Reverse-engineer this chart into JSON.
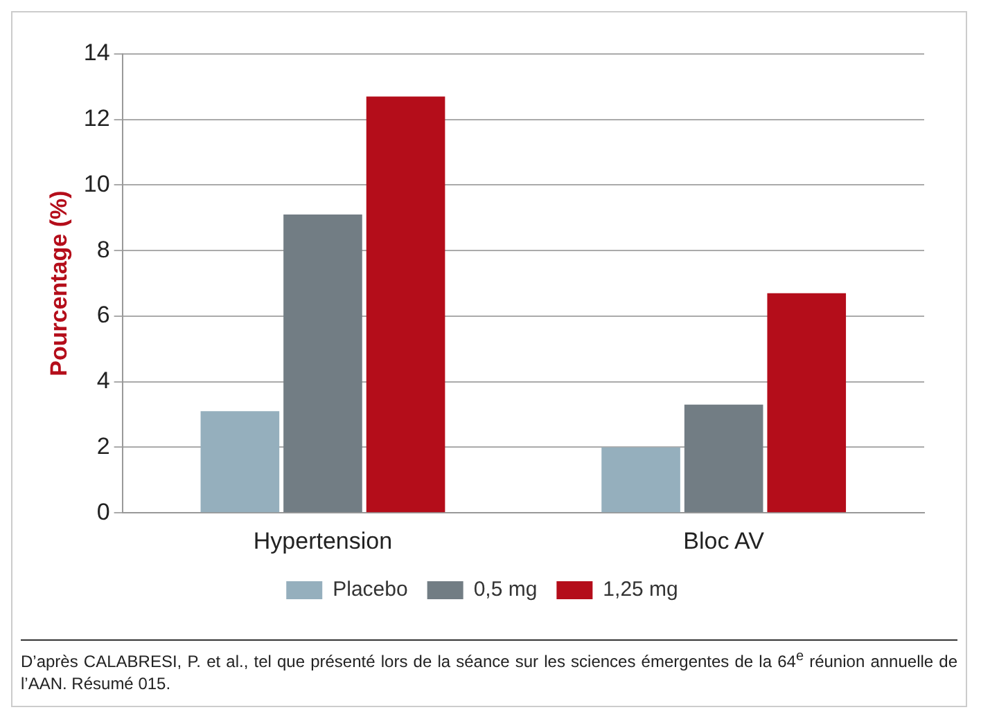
{
  "chart_data": {
    "type": "bar",
    "ylabel": "Pourcentage (%)",
    "categories": [
      "Hypertension",
      "Bloc AV"
    ],
    "series": [
      {
        "name": "Placebo",
        "color": "#95afbd",
        "values": [
          3.1,
          2.0
        ]
      },
      {
        "name": "0,5 mg",
        "color": "#727d84",
        "values": [
          9.1,
          3.3
        ]
      },
      {
        "name": "1,25 mg",
        "color": "#b40d1a",
        "values": [
          12.7,
          6.7
        ]
      }
    ],
    "ylim": [
      0,
      14
    ],
    "yticks": [
      0,
      2,
      4,
      6,
      8,
      10,
      12,
      14
    ],
    "grid": "y",
    "legend": "bottom",
    "annotations": [
      "D’après CALABRESI, P. et al., tel que présenté lors de la séance sur les sciences émergentes de la 64$^{e}$ réunion annuelle de l’AAN. Résumé 015."
    ]
  }
}
